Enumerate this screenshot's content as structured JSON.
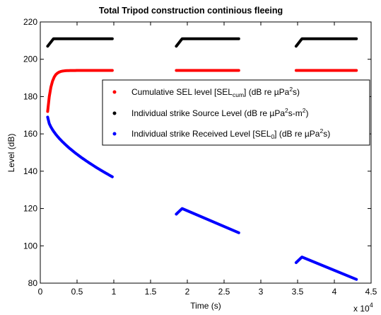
{
  "chart_data": {
    "type": "scatter",
    "title": "Total Tripod construction continious fleeing",
    "xlabel": "Time (s)",
    "ylabel": "Level (dB)",
    "x_multiplier_label": "x 10",
    "x_multiplier_exponent": "4",
    "xlim": [
      0,
      45000
    ],
    "ylim": [
      80,
      220
    ],
    "xticks": [
      0,
      5000,
      10000,
      15000,
      20000,
      25000,
      30000,
      35000,
      40000,
      45000
    ],
    "xtick_labels": [
      "0",
      "0.5",
      "1",
      "1.5",
      "2",
      "2.5",
      "3",
      "3.5",
      "4",
      "4.5"
    ],
    "yticks": [
      80,
      100,
      120,
      140,
      160,
      180,
      200,
      220
    ],
    "ytick_labels": [
      "80",
      "100",
      "120",
      "140",
      "160",
      "180",
      "200",
      "220"
    ],
    "grid": false,
    "legend_position": "center-right",
    "legend": [
      {
        "color": "#ff0000",
        "text": "Cumulative SEL level [SEL",
        "sub": "cum",
        "after": "] (dB re µPa",
        "sup": "2",
        "tail": "s)"
      },
      {
        "color": "#000000",
        "text": "Individual strike Source Level (dB re µPa",
        "sup": "2",
        "tail": "s-m",
        "sup2": "2",
        "tail2": ")"
      },
      {
        "color": "#0000ff",
        "text": "Individual strike Received Level [SEL",
        "sub": "0",
        "after": "] (dB re µPa",
        "sup": "2",
        "tail": "s)"
      }
    ],
    "series": [
      {
        "color": "#000000",
        "segments": [
          {
            "type": "ramp",
            "x": [
              1000,
              1800,
              1800,
              9800
            ],
            "y": [
              207,
              211,
              211,
              211
            ]
          },
          {
            "type": "ramp",
            "x": [
              18500,
              19300,
              19300,
              27000
            ],
            "y": [
              207,
              211,
              211,
              211
            ]
          },
          {
            "type": "ramp",
            "x": [
              34800,
              35600,
              35600,
              43000
            ],
            "y": [
              207,
              211,
              211,
              211
            ]
          }
        ]
      },
      {
        "color": "#ff0000",
        "segments": [
          {
            "type": "saturating",
            "x0": 1000,
            "x1": 9800,
            "y0": 172,
            "y1": 194
          },
          {
            "type": "flat",
            "x": [
              18500,
              27000
            ],
            "y": [
              194,
              194
            ]
          },
          {
            "type": "flat",
            "x": [
              34800,
              43000
            ],
            "y": [
              194,
              194
            ]
          }
        ]
      },
      {
        "color": "#0000ff",
        "segments": [
          {
            "type": "decay",
            "x0": 1000,
            "x1": 9800,
            "y0": 169,
            "y1": 137
          },
          {
            "type": "ramp",
            "x": [
              18500,
              19300,
              19300,
              27000
            ],
            "y": [
              117,
              120,
              120,
              107
            ]
          },
          {
            "type": "ramp",
            "x": [
              34800,
              35600,
              35600,
              43000
            ],
            "y": [
              91,
              94,
              94,
              82
            ]
          }
        ]
      }
    ]
  }
}
